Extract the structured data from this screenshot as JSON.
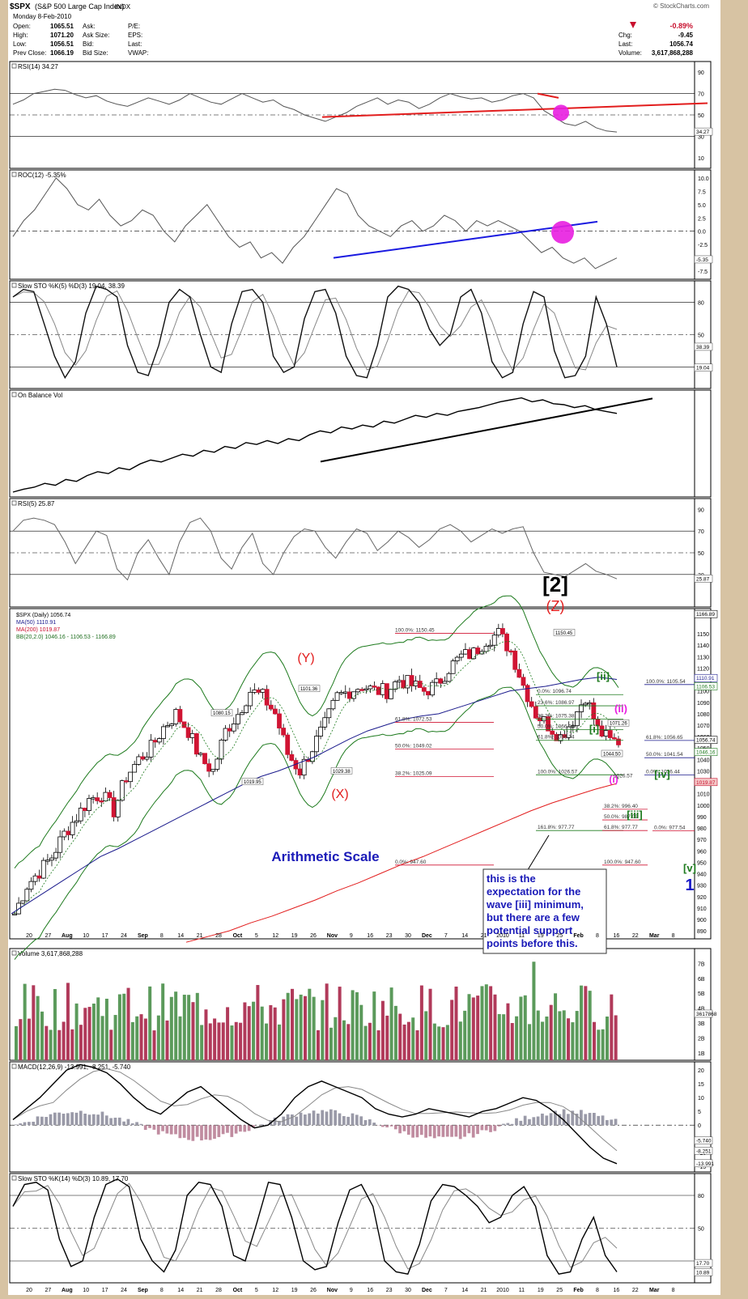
{
  "header": {
    "symbol": "$SPX",
    "name": "(S&P 500 Large Cap Index)",
    "exchange": "INDX",
    "date": "Monday  8-Feb-2010",
    "brand": "© StockCharts.com",
    "left_fields": [
      {
        "label": "Open:",
        "value": "1065.51"
      },
      {
        "label": "High:",
        "value": "1071.20"
      },
      {
        "label": "Low:",
        "value": "1056.51"
      },
      {
        "label": "Prev Close:",
        "value": "1066.19"
      }
    ],
    "mid_fields": [
      "Ask:",
      "Ask Size:",
      "Bid:",
      "Bid Size:"
    ],
    "right_fields": [
      "P/E:",
      "EPS:",
      "Last:",
      "VWAP:"
    ],
    "quote": [
      {
        "label": "",
        "value": "-0.89%"
      },
      {
        "label": "Chg:",
        "value": "-9.45"
      },
      {
        "label": "Last:",
        "value": "1056.74"
      },
      {
        "label": "Volume:",
        "value": "3,617,868,288"
      }
    ],
    "down_color": "#c8102e"
  },
  "panels": {
    "rsi14": {
      "title": "RSI(14) 34.27",
      "levels": [
        "90",
        "70",
        "50",
        "30",
        "10"
      ],
      "last": "34.27"
    },
    "roc12": {
      "title": "ROC(12) -5.35%",
      "levels": [
        "10.0",
        "7.5",
        "5.0",
        "2.5",
        "0.0",
        "-2.5",
        "-5.0",
        "-7.5"
      ],
      "last": "-5.35"
    },
    "sto5": {
      "title": "Slow STO %K(5) %D(3) 19.04, 38.39",
      "levels": [
        "80",
        "50",
        "20"
      ],
      "last1": "38.39",
      "last2": "19.04"
    },
    "obv": {
      "title": "On Balance Vol"
    },
    "rsi5": {
      "title": "RSI(5) 25.87",
      "levels": [
        "90",
        "70",
        "50",
        "30"
      ],
      "last": "25.87"
    },
    "volume": {
      "title": "Volume 3,617,868,288",
      "levels": [
        "7B",
        "6B",
        "5B",
        "4B",
        "3B",
        "2B",
        "1B"
      ],
      "last": "3617868"
    },
    "macd": {
      "title": "MACD(12,26,9) -13.991, -8.251, -5.740",
      "levels": [
        "20",
        "15",
        "10",
        "5",
        "0",
        "-5",
        "-10",
        "-15"
      ],
      "last1": "-5.740",
      "last2": "-8.251",
      "last3": "-13.991"
    },
    "sto14": {
      "title": "Slow STO %K(14) %D(3) 10.89, 17.70",
      "levels": [
        "80",
        "50",
        "20"
      ],
      "last1": "17.70",
      "last2": "10.89"
    }
  },
  "price": {
    "legend": [
      "$SPX (Daily) 1056.74",
      "MA(50) 1110.91",
      "MA(200) 1019.87",
      "BB(20,2.0) 1046.16 - 1106.53 - 1166.89"
    ],
    "axis": [
      "1150",
      "1140",
      "1130",
      "1120",
      "1110",
      "1100",
      "1090",
      "1080",
      "1070",
      "1060",
      "1050",
      "1040",
      "1030",
      "1020",
      "1010",
      "1000",
      "990",
      "980",
      "970",
      "960",
      "950",
      "940",
      "930",
      "920",
      "910",
      "900",
      "890"
    ],
    "right_tags": [
      "1166.89",
      "1110.91",
      "1106.53",
      "1056.74",
      "1046.16",
      "1019.87"
    ],
    "annotations": {
      "wave2": "[2]",
      "z": "(Z)",
      "y": "(Y)",
      "x": "(X)",
      "ii_green": "[ii]",
      "ii_pink": "(ii)",
      "i_green": "[i]",
      "i_pink": "(i)",
      "iv": "[iv]",
      "iii": "[iii]",
      "v": "[v]",
      "one": "1",
      "scale": "Arithmetic Scale"
    },
    "price_tags": [
      "1150.45",
      "1101.36",
      "1080.15",
      "1019.95",
      "1029.38",
      "1071.26",
      "1044.50"
    ],
    "fib_left": [
      "100.0%: 1150.45",
      "61.8%: 1072.53",
      "50.0%: 1049.02",
      "38.2%: 1025.09",
      "0.0%: 947.60"
    ],
    "fib_mid": [
      "0.0%: 1096.74",
      "23.6%: 1086.97",
      "38.2%: 1075.38",
      "50.0%: 1066.08",
      "61.8%: 1056.74",
      "100.0%: 1026.57",
      "161.8%: 977.77"
    ],
    "fib_right": [
      "100.0%: 1105.54",
      "61.8%: 1056.65",
      "50.0%: 1041.54",
      "0.0%: 1026.44",
      "38.2%: 996.40",
      "50.0%: 987.09",
      "61.8%: 977.77",
      "0.0%: 977.54",
      "100.0%: 947.60",
      "1026.57"
    ],
    "callout": [
      "this is the",
      "expectation for the",
      "wave [iii] minimum,",
      "but there are a few",
      "potential support",
      "points before this."
    ]
  },
  "x_axis": [
    "20",
    "27",
    "Aug",
    "10",
    "17",
    "24",
    "Sep",
    "8",
    "14",
    "21",
    "28",
    "Oct",
    "5",
    "12",
    "19",
    "26",
    "Nov",
    "9",
    "16",
    "23",
    "30",
    "Dec",
    "7",
    "14",
    "21",
    "2010",
    "11",
    "19",
    "25",
    "Feb",
    "8",
    "16",
    "22",
    "Mar",
    "8"
  ],
  "chart_data": {
    "type": "line",
    "title": "$SPX (S&P 500 Large Cap Index)",
    "x_range": [
      "2009-07-16",
      "2010-02-08"
    ],
    "last_close": 1056.74,
    "series": [
      {
        "name": "$SPX (Daily)",
        "values": [
          905,
          930,
          942,
          955,
          975,
          990,
          1005,
          1010,
          995,
          1025,
          1040,
          1050,
          1068,
          1080,
          1065,
          1040,
          1030,
          1065,
          1080,
          1100,
          1095,
          1080,
          1045,
          1030,
          1050,
          1070,
          1095,
          1100,
          1105,
          1100,
          1100,
          1110,
          1105,
          1100,
          1105,
          1120,
          1130,
          1133,
          1145,
          1150,
          1135,
          1105,
          1080,
          1070,
          1060,
          1075,
          1096,
          1066,
          1056
        ]
      },
      {
        "name": "MA(50)",
        "values": [
          905,
          915,
          925,
          935,
          945,
          955,
          962,
          970,
          978,
          986,
          994,
          1002,
          1010,
          1018,
          1025,
          1030,
          1036,
          1042,
          1050,
          1058,
          1065,
          1070,
          1075,
          1078,
          1080,
          1085,
          1090,
          1095,
          1100,
          1102,
          1104,
          1107,
          1110,
          1112,
          1110
        ]
      },
      {
        "name": "MA(200)",
        "values": [
          880,
          885,
          890,
          897,
          903,
          910,
          917,
          925,
          932,
          940,
          948,
          955,
          963,
          971,
          979,
          987,
          995,
          1002,
          1008,
          1014,
          1019
        ]
      }
    ],
    "ylim": [
      885,
      1170
    ]
  }
}
